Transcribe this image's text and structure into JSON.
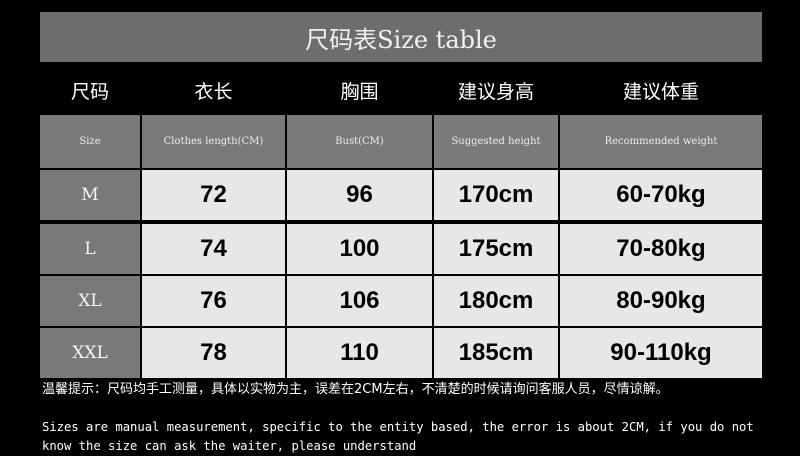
{
  "header": {
    "title": "尺码表Size table"
  },
  "column_headers_cn": [
    "尺码",
    "衣长",
    "胸围",
    "建议身高",
    "建议体重"
  ],
  "table": {
    "header": [
      "Size",
      "Clothes length(CM)",
      "Bust(CM)",
      "Suggested height",
      "Recommended weight"
    ],
    "rows": [
      [
        "M",
        "72",
        "96",
        "170cm",
        "60-70kg"
      ],
      [
        "L",
        "74",
        "100",
        "175cm",
        "70-80kg"
      ],
      [
        "XL",
        "76",
        "106",
        "180cm",
        "80-90kg"
      ],
      [
        "XXL",
        "78",
        "110",
        "185cm",
        "90-110kg"
      ]
    ]
  },
  "notes": {
    "cn": "温馨提示：尺码均手工测量，具体以实物为主，误差在2CM左右，不清楚的时候请询问客服人员，尽情谅解。",
    "en": "Sizes are manual measurement, specific to the entity based, the error is about 2CM, if you do not know the size can ask the waiter, please understand"
  }
}
